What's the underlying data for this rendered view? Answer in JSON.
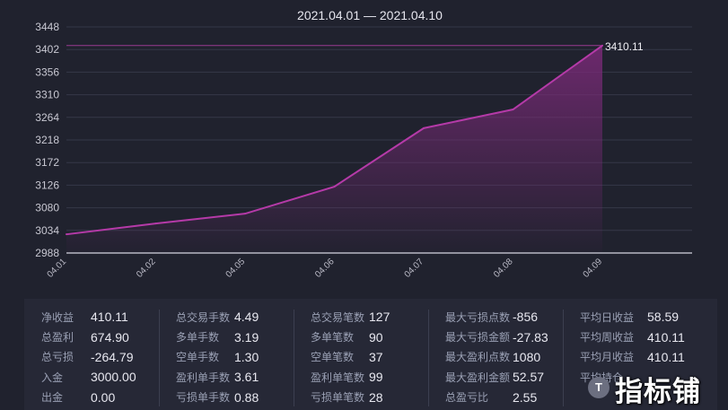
{
  "chart_data": {
    "type": "area",
    "title": "2021.04.01 — 2021.04.10",
    "categories": [
      "04.01",
      "04.02",
      "04.05",
      "04.06",
      "04.07",
      "04.08",
      "04.09"
    ],
    "values": [
      3026,
      3048,
      3068,
      3123,
      3242,
      3280,
      3410.11
    ],
    "y_ticks": [
      "2988",
      "3034",
      "3080",
      "3126",
      "3172",
      "3218",
      "3264",
      "3310",
      "3356",
      "3402",
      "3448"
    ],
    "ylim": [
      2988,
      3448
    ],
    "max_label": "3410.11",
    "reference_line_value": 3410.11,
    "grid": true,
    "line_color": "#b53aa8",
    "fill_color": "#7a2a78"
  },
  "stats": {
    "columns": [
      [
        {
          "label": "净收益",
          "value": "410.11"
        },
        {
          "label": "总盈利",
          "value": "674.90"
        },
        {
          "label": "总亏损",
          "value": "-264.79"
        },
        {
          "label": "入金",
          "value": "3000.00"
        },
        {
          "label": "出金",
          "value": "0.00"
        }
      ],
      [
        {
          "label": "总交易手数",
          "value": "4.49"
        },
        {
          "label": "多单手数",
          "value": "3.19"
        },
        {
          "label": "空单手数",
          "value": "1.30"
        },
        {
          "label": "盈利单手数",
          "value": "3.61"
        },
        {
          "label": "亏损单手数",
          "value": "0.88"
        }
      ],
      [
        {
          "label": "总交易笔数",
          "value": "127"
        },
        {
          "label": "多单笔数",
          "value": "90"
        },
        {
          "label": "空单笔数",
          "value": "37"
        },
        {
          "label": "盈利单笔数",
          "value": "99"
        },
        {
          "label": "亏损单笔数",
          "value": "28"
        }
      ],
      [
        {
          "label": "最大亏损点数",
          "value": "-856"
        },
        {
          "label": "最大亏损金额",
          "value": "-27.83"
        },
        {
          "label": "最大盈利点数",
          "value": "1080"
        },
        {
          "label": "最大盈利金额",
          "value": "52.57"
        },
        {
          "label": "总盈亏比",
          "value": "2.55"
        }
      ],
      [
        {
          "label": "平均日收益",
          "value": "58.59"
        },
        {
          "label": "平均周收益",
          "value": "410.11"
        },
        {
          "label": "平均月收益",
          "value": "410.11"
        },
        {
          "label": "平均持仓",
          "value": ""
        }
      ]
    ]
  },
  "watermark": {
    "badge": "T",
    "text": "指标铺"
  }
}
